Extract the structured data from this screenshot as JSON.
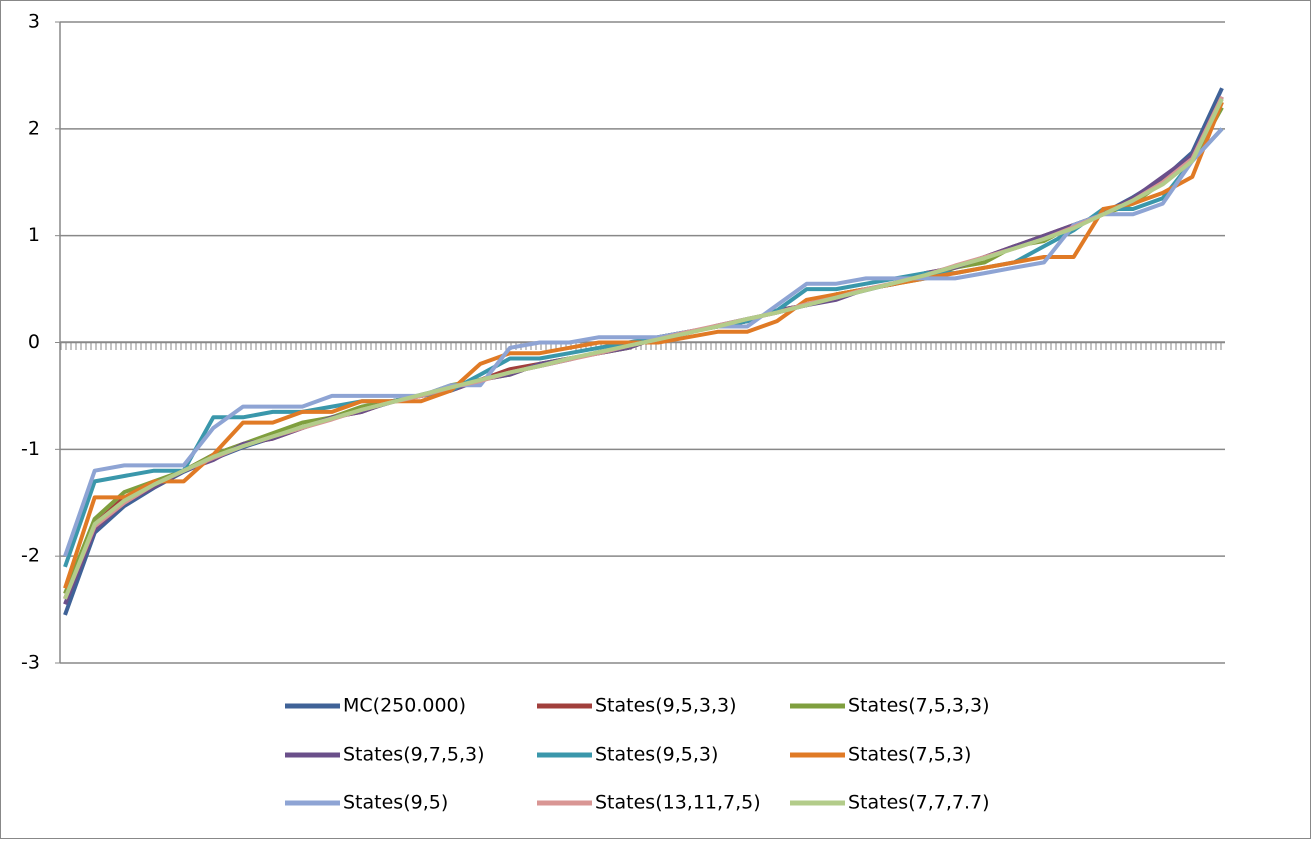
{
  "chart_data": {
    "type": "line",
    "ylim": [
      -3,
      3
    ],
    "yticks": [
      -3,
      -2,
      -1,
      0,
      1,
      2,
      3
    ],
    "grid": true,
    "legend": "bottom",
    "series": [
      {
        "name": "MC(250.000)",
        "color": "#3f6297",
        "values": [
          -2.55,
          -1.78,
          -1.53,
          -1.36,
          -1.21,
          -1.09,
          -0.98,
          -0.89,
          -0.8,
          -0.71,
          -0.64,
          -0.56,
          -0.49,
          -0.42,
          -0.35,
          -0.28,
          -0.22,
          -0.16,
          -0.09,
          -0.03,
          0.03,
          0.09,
          0.16,
          0.22,
          0.28,
          0.35,
          0.42,
          0.49,
          0.56,
          0.64,
          0.71,
          0.8,
          0.89,
          0.98,
          1.09,
          1.21,
          1.36,
          1.53,
          1.78,
          2.38
        ]
      },
      {
        "name": "States(9,5,3,3)",
        "color": "#a13f3c",
        "values": [
          -2.4,
          -1.7,
          -1.45,
          -1.35,
          -1.2,
          -1.05,
          -0.95,
          -0.9,
          -0.8,
          -0.7,
          -0.65,
          -0.55,
          -0.5,
          -0.45,
          -0.35,
          -0.25,
          -0.2,
          -0.15,
          -0.1,
          -0.05,
          0.05,
          0.1,
          0.15,
          0.2,
          0.3,
          0.35,
          0.45,
          0.5,
          0.55,
          0.65,
          0.7,
          0.8,
          0.9,
          1.0,
          1.1,
          1.2,
          1.35,
          1.5,
          1.75,
          2.25
        ]
      },
      {
        "name": "States(7,5,3,3)",
        "color": "#7f9f3e",
        "values": [
          -2.35,
          -1.65,
          -1.4,
          -1.3,
          -1.2,
          -1.05,
          -0.95,
          -0.85,
          -0.75,
          -0.7,
          -0.6,
          -0.55,
          -0.5,
          -0.4,
          -0.35,
          -0.3,
          -0.2,
          -0.15,
          -0.1,
          -0.05,
          0.05,
          0.1,
          0.15,
          0.2,
          0.3,
          0.35,
          0.45,
          0.5,
          0.55,
          0.6,
          0.7,
          0.75,
          0.9,
          0.95,
          1.1,
          1.2,
          1.3,
          1.5,
          1.7,
          2.2
        ]
      },
      {
        "name": "States(9,7,5,3)",
        "color": "#6a4f8a",
        "values": [
          -2.45,
          -1.75,
          -1.5,
          -1.35,
          -1.2,
          -1.1,
          -0.95,
          -0.9,
          -0.8,
          -0.7,
          -0.65,
          -0.55,
          -0.5,
          -0.45,
          -0.35,
          -0.3,
          -0.2,
          -0.15,
          -0.1,
          -0.05,
          0.05,
          0.1,
          0.15,
          0.2,
          0.3,
          0.35,
          0.4,
          0.5,
          0.55,
          0.65,
          0.7,
          0.8,
          0.9,
          1.0,
          1.1,
          1.2,
          1.35,
          1.55,
          1.75,
          2.3
        ]
      },
      {
        "name": "States(9,5,3)",
        "color": "#3a97ab",
        "values": [
          -2.1,
          -1.3,
          -1.25,
          -1.2,
          -1.2,
          -0.7,
          -0.7,
          -0.65,
          -0.65,
          -0.6,
          -0.55,
          -0.55,
          -0.5,
          -0.45,
          -0.3,
          -0.15,
          -0.15,
          -0.1,
          -0.05,
          0.0,
          0.05,
          0.1,
          0.15,
          0.2,
          0.3,
          0.5,
          0.5,
          0.55,
          0.6,
          0.65,
          0.65,
          0.7,
          0.75,
          0.9,
          1.05,
          1.25,
          1.25,
          1.35,
          1.7,
          2.0
        ]
      },
      {
        "name": "States(7,5,3)",
        "color": "#e07a25",
        "values": [
          -2.3,
          -1.45,
          -1.45,
          -1.3,
          -1.3,
          -1.05,
          -0.75,
          -0.75,
          -0.65,
          -0.65,
          -0.55,
          -0.55,
          -0.55,
          -0.45,
          -0.2,
          -0.1,
          -0.1,
          -0.05,
          0.0,
          0.0,
          0.0,
          0.05,
          0.1,
          0.1,
          0.2,
          0.4,
          0.45,
          0.5,
          0.55,
          0.6,
          0.65,
          0.7,
          0.75,
          0.8,
          0.8,
          1.25,
          1.3,
          1.4,
          1.55,
          2.25
        ]
      },
      {
        "name": "States(9,5)",
        "color": "#8ea4d4",
        "values": [
          -2.0,
          -1.2,
          -1.15,
          -1.15,
          -1.15,
          -0.8,
          -0.6,
          -0.6,
          -0.6,
          -0.5,
          -0.5,
          -0.5,
          -0.5,
          -0.4,
          -0.4,
          -0.05,
          0.0,
          0.0,
          0.05,
          0.05,
          0.05,
          0.1,
          0.15,
          0.15,
          0.35,
          0.55,
          0.55,
          0.6,
          0.6,
          0.6,
          0.6,
          0.65,
          0.7,
          0.75,
          1.1,
          1.2,
          1.2,
          1.3,
          1.7,
          2.0
        ]
      },
      {
        "name": "States(13,11,7,5)",
        "color": "#d99694",
        "values": [
          -2.4,
          -1.72,
          -1.5,
          -1.33,
          -1.2,
          -1.08,
          -0.97,
          -0.88,
          -0.8,
          -0.72,
          -0.63,
          -0.56,
          -0.5,
          -0.42,
          -0.36,
          -0.28,
          -0.22,
          -0.16,
          -0.1,
          -0.03,
          0.03,
          0.1,
          0.16,
          0.22,
          0.28,
          0.36,
          0.42,
          0.5,
          0.56,
          0.63,
          0.72,
          0.8,
          0.88,
          0.97,
          1.08,
          1.2,
          1.33,
          1.5,
          1.72,
          2.3
        ]
      },
      {
        "name": "States(7,7,7.7)",
        "color": "#b3cc8a",
        "values": [
          -2.4,
          -1.7,
          -1.48,
          -1.33,
          -1.2,
          -1.07,
          -0.97,
          -0.88,
          -0.79,
          -0.71,
          -0.63,
          -0.56,
          -0.49,
          -0.42,
          -0.35,
          -0.28,
          -0.22,
          -0.15,
          -0.09,
          -0.03,
          0.03,
          0.09,
          0.15,
          0.22,
          0.28,
          0.35,
          0.42,
          0.49,
          0.56,
          0.63,
          0.71,
          0.79,
          0.88,
          0.97,
          1.07,
          1.2,
          1.33,
          1.48,
          1.7,
          2.28
        ]
      }
    ]
  }
}
